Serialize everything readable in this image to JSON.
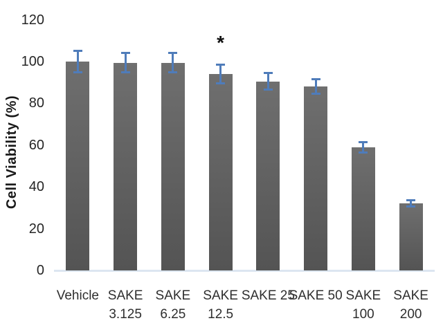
{
  "chart_data": {
    "type": "bar",
    "title": "",
    "xlabel": "",
    "ylabel": "Cell Viability (%)",
    "ylim": [
      0,
      120
    ],
    "yticks": [
      0,
      20,
      40,
      60,
      80,
      100,
      120
    ],
    "grid": false,
    "legend": null,
    "categories": [
      "Vehicle",
      "SAKE 3.125",
      "SAKE 6.25",
      "SAKE 12.5",
      "SAKE 25",
      "SAKE 50",
      "SAKE 100",
      "SAKE 200"
    ],
    "category_label_lines": [
      [
        "Vehicle"
      ],
      [
        "SAKE",
        "3.125"
      ],
      [
        "SAKE",
        "6.25"
      ],
      [
        "SAKE",
        "12.5"
      ],
      [
        "SAKE 25"
      ],
      [
        "SAKE 50"
      ],
      [
        "SAKE",
        "100"
      ],
      [
        "SAKE",
        "200"
      ]
    ],
    "series": [
      {
        "name": "Cell Viability (%)",
        "values": [
          100,
          99.5,
          99.5,
          94,
          90.5,
          88,
          59,
          32
        ],
        "errors": [
          5.5,
          5,
          5,
          5,
          4.5,
          4,
          3,
          2
        ]
      }
    ],
    "annotations": [
      {
        "text": "*",
        "category": "SAKE 12.5",
        "category_index": 3
      }
    ],
    "colors": {
      "bar_top": "#6f6f6f",
      "bar_bottom": "#545454",
      "error_bar": "#4f7cba",
      "axis_line": "#dce6f1",
      "tick_text": "#262626",
      "label_text": "#2e2e2e",
      "annotation_text": "#111111"
    }
  }
}
